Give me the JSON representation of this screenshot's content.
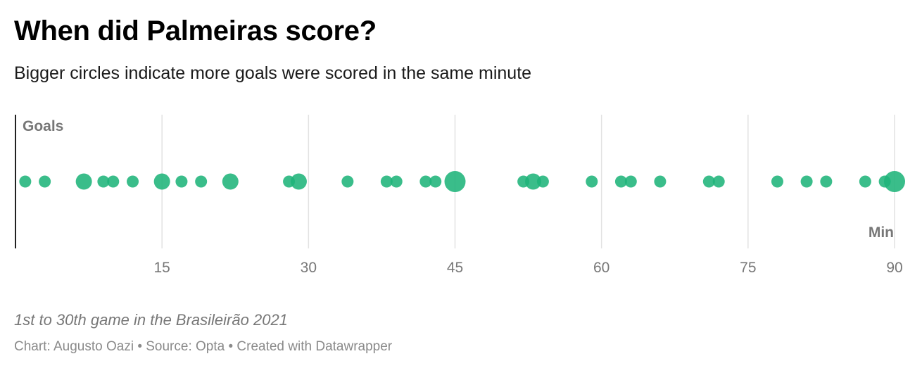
{
  "header": {
    "title": "When did Palmeiras score?",
    "subtitle": "Bigger circles indicate more goals were scored in the same minute"
  },
  "footer": {
    "note": "1st to 30th game in the Brasileirão 2021",
    "credits": "Chart: Augusto Oazi • Source: Opta • Created with Datawrapper"
  },
  "chart_data": {
    "type": "scatter",
    "title": "When did Palmeiras score?",
    "subtitle": "Bigger circles indicate more goals were scored in the same minute",
    "xlabel": "Min",
    "ylabel": "Goals",
    "xlim": [
      0,
      90
    ],
    "x_ticks": [
      15,
      30,
      45,
      60,
      75,
      90
    ],
    "grid": "vertical",
    "legend": "none",
    "color": "#1fb47a",
    "points": [
      {
        "minute": 1,
        "goals": 1
      },
      {
        "minute": 3,
        "goals": 1
      },
      {
        "minute": 7,
        "goals": 2
      },
      {
        "minute": 9,
        "goals": 1
      },
      {
        "minute": 10,
        "goals": 1
      },
      {
        "minute": 12,
        "goals": 1
      },
      {
        "minute": 15,
        "goals": 2
      },
      {
        "minute": 17,
        "goals": 1
      },
      {
        "minute": 19,
        "goals": 1
      },
      {
        "minute": 22,
        "goals": 2
      },
      {
        "minute": 28,
        "goals": 1
      },
      {
        "minute": 29,
        "goals": 2
      },
      {
        "minute": 34,
        "goals": 1
      },
      {
        "minute": 38,
        "goals": 1
      },
      {
        "minute": 39,
        "goals": 1
      },
      {
        "minute": 42,
        "goals": 1
      },
      {
        "minute": 43,
        "goals": 1
      },
      {
        "minute": 45,
        "goals": 3
      },
      {
        "minute": 52,
        "goals": 1
      },
      {
        "minute": 53,
        "goals": 2
      },
      {
        "minute": 54,
        "goals": 1
      },
      {
        "minute": 59,
        "goals": 1
      },
      {
        "minute": 62,
        "goals": 1
      },
      {
        "minute": 63,
        "goals": 1
      },
      {
        "minute": 66,
        "goals": 1
      },
      {
        "minute": 71,
        "goals": 1
      },
      {
        "minute": 72,
        "goals": 1
      },
      {
        "minute": 78,
        "goals": 1
      },
      {
        "minute": 81,
        "goals": 1
      },
      {
        "minute": 83,
        "goals": 1
      },
      {
        "minute": 87,
        "goals": 1
      },
      {
        "minute": 89,
        "goals": 1
      },
      {
        "minute": 90,
        "goals": 3
      }
    ]
  }
}
